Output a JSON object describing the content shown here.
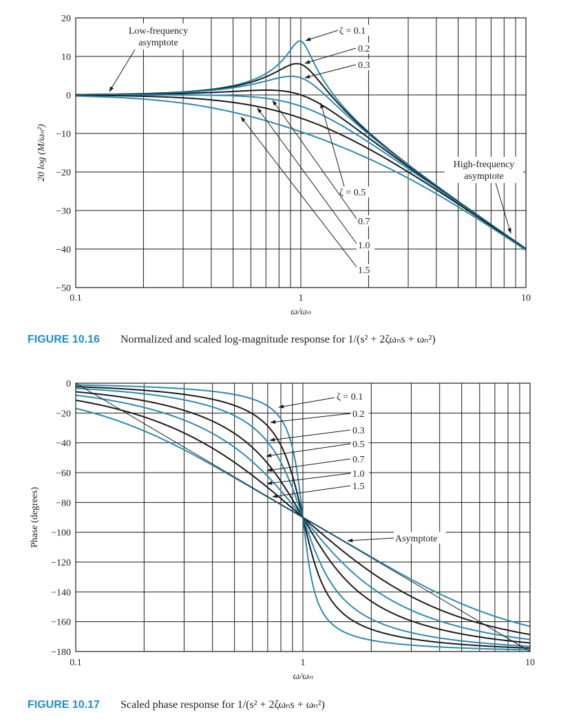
{
  "chart_data": [
    {
      "type": "line",
      "figure_label": "FIGURE 10.16",
      "caption": "Normalized and scaled log-magnitude response for 1/(s² + 2ζωₙs + ωₙ²)",
      "xlabel": "ω/ωₙ",
      "ylabel": "20 log (M/ωₙ²)",
      "x_scale": "log",
      "xlim": [
        0.1,
        10
      ],
      "ylim": [
        -50,
        20
      ],
      "x_ticks": [
        "0.1",
        "1",
        "10"
      ],
      "y_ticks": [
        "20",
        "10",
        "0",
        "−10",
        "−20",
        "−30",
        "−40",
        "−50"
      ],
      "grid": true,
      "series": [
        {
          "name": "ζ = 0.1",
          "zeta": 0.1,
          "color": "#2a8bb0"
        },
        {
          "name": "0.2",
          "zeta": 0.2,
          "color": "#1a1a1a"
        },
        {
          "name": "0.3",
          "zeta": 0.3,
          "color": "#2a8bb0"
        },
        {
          "name": "ζ = 0.5",
          "zeta": 0.5,
          "color": "#1a1a1a"
        },
        {
          "name": "0.7",
          "zeta": 0.7,
          "color": "#2a8bb0"
        },
        {
          "name": "1.0",
          "zeta": 1.0,
          "color": "#1a1a1a"
        },
        {
          "name": "1.5",
          "zeta": 1.5,
          "color": "#2a8bb0"
        }
      ],
      "peak_values_db": {
        "0.1": 14.0,
        "0.2": 8.1,
        "0.3": 4.9,
        "0.5": 1.2,
        "0.7": 0.0,
        "1.0": 0.0,
        "1.5": 0.0
      },
      "annotations": {
        "low_asymptote": [
          "Low-frequency",
          "asymptote"
        ],
        "high_asymptote": [
          "High-frequency",
          "asymptote"
        ]
      }
    },
    {
      "type": "line",
      "figure_label": "FIGURE 10.17",
      "caption": "Scaled phase response for 1/(s² + 2ζωₙs + ωₙ²)",
      "xlabel": "ω/ωₙ",
      "ylabel": "Phase (degrees)",
      "x_scale": "log",
      "xlim": [
        0.1,
        10
      ],
      "ylim": [
        -180,
        0
      ],
      "x_ticks": [
        "0.1",
        "1",
        "10"
      ],
      "y_ticks": [
        "0",
        "−20",
        "−40",
        "−60",
        "−80",
        "−100",
        "−120",
        "−140",
        "−160",
        "−180"
      ],
      "grid": true,
      "series": [
        {
          "name": "ζ = 0.1",
          "zeta": 0.1,
          "color": "#2a8bb0"
        },
        {
          "name": "0.2",
          "zeta": 0.2,
          "color": "#1a1a1a"
        },
        {
          "name": "0.3",
          "zeta": 0.3,
          "color": "#2a8bb0"
        },
        {
          "name": "0.5",
          "zeta": 0.5,
          "color": "#1a1a1a"
        },
        {
          "name": "0.7",
          "zeta": 0.7,
          "color": "#2a8bb0"
        },
        {
          "name": "1.0",
          "zeta": 1.0,
          "color": "#1a1a1a"
        },
        {
          "name": "1.5",
          "zeta": 1.5,
          "color": "#2a8bb0"
        }
      ],
      "phase_at_unity_deg": -90,
      "annotations": {
        "asymptote": "Asymptote"
      }
    }
  ]
}
